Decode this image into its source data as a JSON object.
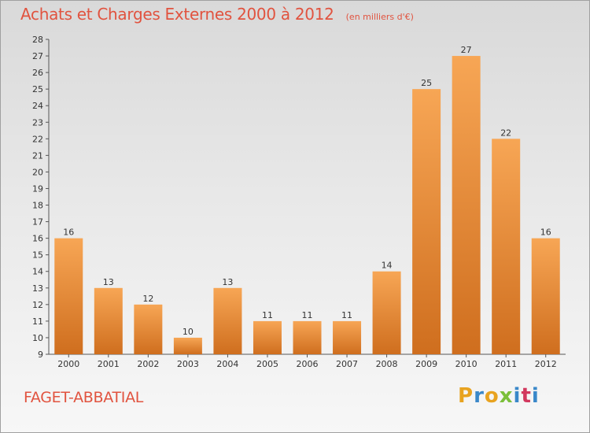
{
  "header": {
    "title": "Achats et Charges Externes 2000 à 2012",
    "subtitle": "(en milliers d'€)"
  },
  "commune": "FAGET-ABBATIAL",
  "logo": {
    "letters": [
      "P",
      "r",
      "o",
      "x",
      "i",
      "t",
      "i"
    ],
    "colors": [
      "#e8a320",
      "#3a88c9",
      "#e8a320",
      "#7bbf3a",
      "#3a88c9",
      "#d2385e",
      "#3a88c9"
    ]
  },
  "colors": {
    "title": "#e1533f",
    "bar_light": "#f7a655",
    "bar_dark": "#cf6e1e"
  },
  "chart_data": {
    "type": "bar",
    "categories": [
      "2000",
      "2001",
      "2002",
      "2003",
      "2004",
      "2005",
      "2006",
      "2007",
      "2008",
      "2009",
      "2010",
      "2011",
      "2012"
    ],
    "values": [
      16,
      13,
      12,
      10,
      13,
      11,
      11,
      11,
      14,
      25,
      27,
      22,
      16
    ],
    "title": "Achats et Charges Externes 2000 à 2012",
    "ylim": [
      9,
      28
    ],
    "yticks": [
      9,
      10,
      11,
      12,
      13,
      14,
      15,
      16,
      17,
      18,
      19,
      20,
      21,
      22,
      23,
      24,
      25,
      26,
      27,
      28
    ],
    "grid": false
  }
}
